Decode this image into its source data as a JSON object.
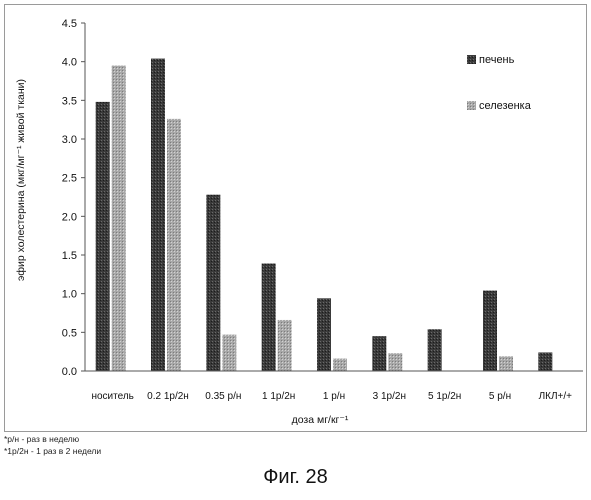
{
  "chart_data": {
    "type": "bar",
    "categories": [
      "носитель",
      "0.2 1р/2н",
      "0.35 р/н",
      "1 1р/2н",
      "1 р/н",
      "3 1р/2н",
      "5 1р/2н",
      "5 р/н",
      "ЛКЛ+/+"
    ],
    "series": [
      {
        "name": "печень",
        "values": [
          3.48,
          4.04,
          2.28,
          1.39,
          0.94,
          0.45,
          0.54,
          1.04,
          0.24
        ],
        "color": "#3a3a3a"
      },
      {
        "name": "селезенка",
        "values": [
          3.95,
          3.26,
          0.47,
          0.66,
          0.16,
          0.23,
          null,
          0.19,
          null
        ],
        "color": "#a8a8a8"
      }
    ],
    "xlabel": "доза мг/кг⁻¹",
    "ylabel": "эфир холестерина (мкг/мг⁻¹ живой ткани)",
    "ylim": [
      0,
      4.5
    ],
    "yticks": [
      "0.0",
      "0.5",
      "1.0",
      "1.5",
      "2.0",
      "2.5",
      "3.0",
      "3.5",
      "4.0",
      "4.5"
    ],
    "grid": false,
    "legend_position": "top-right"
  },
  "footnotes": [
    "*р/н - раз в неделю",
    "*1р/2н - 1 раз в 2 недели"
  ],
  "caption": "Фиг. 28"
}
